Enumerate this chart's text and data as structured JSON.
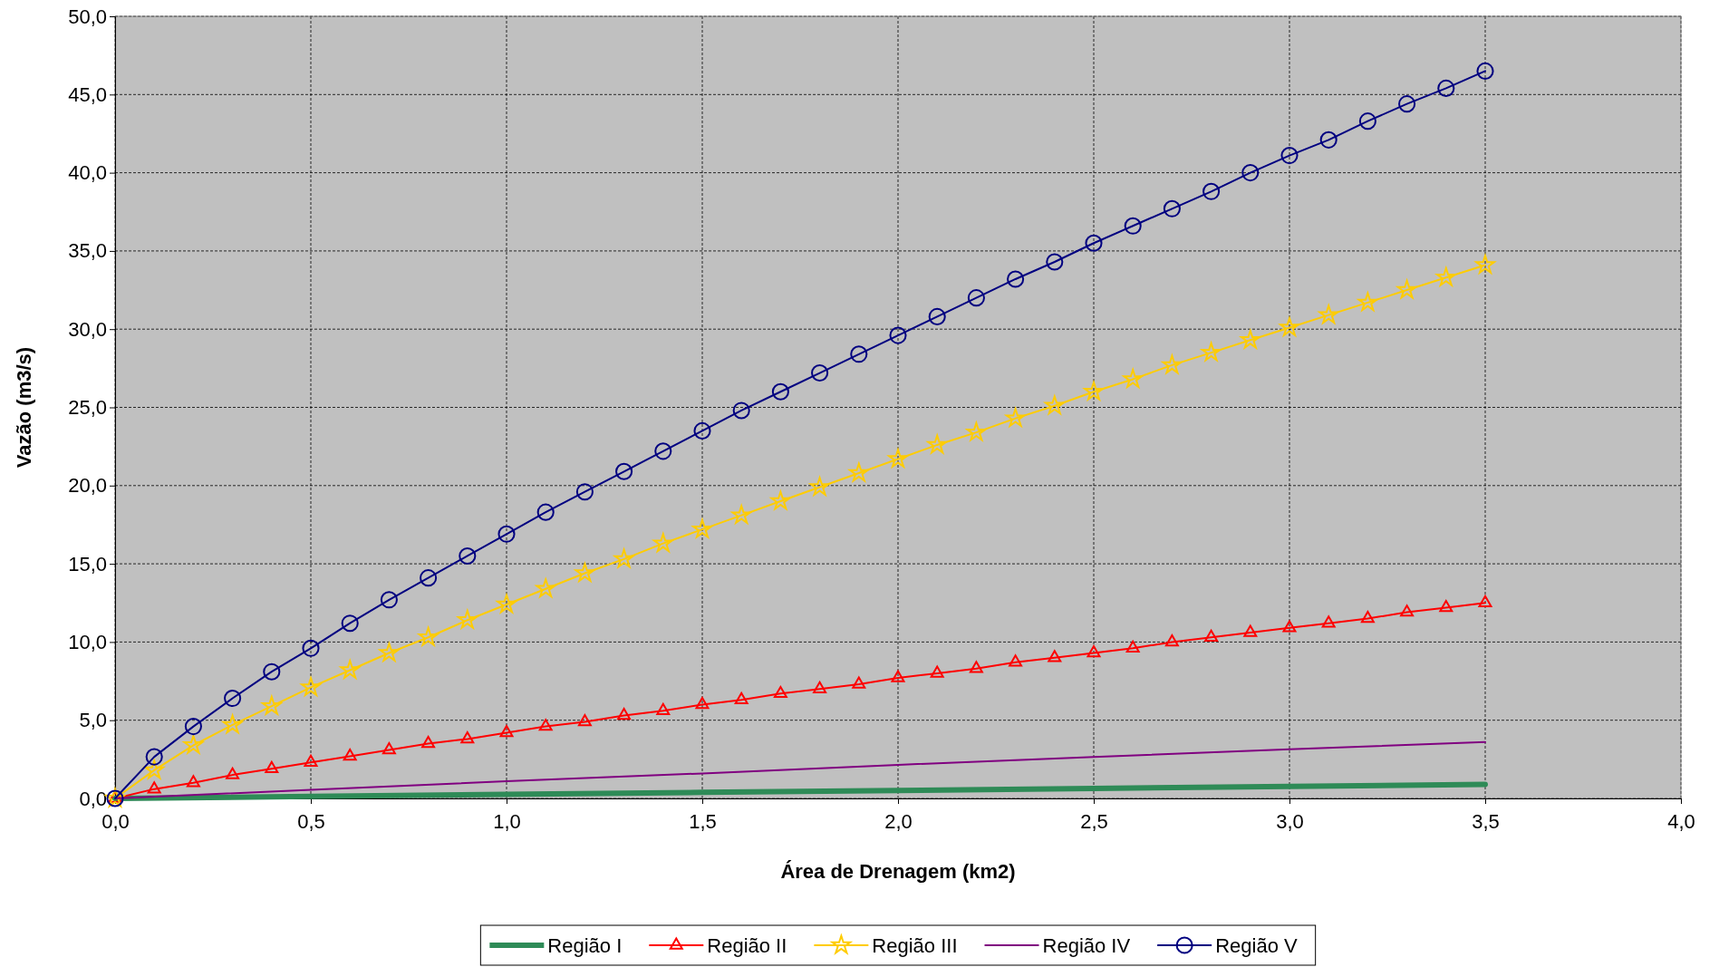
{
  "chart_data": {
    "type": "line",
    "xlabel": "Área de Drenagem (km2)",
    "ylabel": "Vazão (m3/s)",
    "xlim": [
      0,
      4
    ],
    "ylim": [
      0,
      50
    ],
    "xticks": [
      {
        "value": 0,
        "label": "0,0"
      },
      {
        "value": 0.5,
        "label": "0,5"
      },
      {
        "value": 1,
        "label": "1,0"
      },
      {
        "value": 1.5,
        "label": "1,5"
      },
      {
        "value": 2,
        "label": "2,0"
      },
      {
        "value": 2.5,
        "label": "2,5"
      },
      {
        "value": 3,
        "label": "3,0"
      },
      {
        "value": 3.5,
        "label": "3,5"
      },
      {
        "value": 4,
        "label": "4,0"
      }
    ],
    "yticks": [
      {
        "value": 0,
        "label": "0,0"
      },
      {
        "value": 5,
        "label": "5,0"
      },
      {
        "value": 10,
        "label": "10,0"
      },
      {
        "value": 15,
        "label": "15,0"
      },
      {
        "value": 20,
        "label": "20,0"
      },
      {
        "value": 25,
        "label": "25,0"
      },
      {
        "value": 30,
        "label": "30,0"
      },
      {
        "value": 35,
        "label": "35,0"
      },
      {
        "value": 40,
        "label": "40,0"
      },
      {
        "value": 45,
        "label": "45,0"
      },
      {
        "value": 50,
        "label": "50,0"
      }
    ],
    "grid": true,
    "legend": "bottom",
    "line_style": "solid",
    "x": [
      0,
      0.1,
      0.2,
      0.3,
      0.4,
      0.5,
      0.6,
      0.7,
      0.8,
      0.9,
      1.0,
      1.1,
      1.2,
      1.3,
      1.4,
      1.5,
      1.6,
      1.7,
      1.8,
      1.9,
      2.0,
      2.1,
      2.2,
      2.3,
      2.4,
      2.5,
      2.6,
      2.7,
      2.8,
      2.9,
      3.0,
      3.1,
      3.2,
      3.3,
      3.4,
      3.5
    ],
    "series": [
      {
        "name": "Região I",
        "color": "#2e8b57",
        "marker": "none",
        "x": [
          0,
          0.5,
          1.0,
          1.5,
          2.0,
          2.5,
          3.0,
          3.5
        ],
        "values": [
          0,
          0.13,
          0.26,
          0.39,
          0.51,
          0.64,
          0.77,
          0.9
        ]
      },
      {
        "name": "Região II",
        "color": "#ff0000",
        "marker": "triangle",
        "values": [
          0,
          0.6,
          1.0,
          1.5,
          1.9,
          2.3,
          2.7,
          3.1,
          3.5,
          3.8,
          4.2,
          4.6,
          4.9,
          5.3,
          5.6,
          6.0,
          6.3,
          6.7,
          7.0,
          7.3,
          7.7,
          8.0,
          8.3,
          8.7,
          9.0,
          9.3,
          9.6,
          10.0,
          10.3,
          10.6,
          10.9,
          11.2,
          11.5,
          11.9,
          12.2,
          12.5
        ]
      },
      {
        "name": "Região III",
        "color": "#ffcc00",
        "marker": "star",
        "values": [
          0,
          1.8,
          3.4,
          4.7,
          5.9,
          7.1,
          8.2,
          9.3,
          10.3,
          11.4,
          12.4,
          13.4,
          14.4,
          15.3,
          16.3,
          17.2,
          18.1,
          19.0,
          19.9,
          20.8,
          21.7,
          22.6,
          23.4,
          24.3,
          25.1,
          26.0,
          26.8,
          27.7,
          28.5,
          29.3,
          30.1,
          30.9,
          31.7,
          32.5,
          33.3,
          34.1
        ]
      },
      {
        "name": "Região IV",
        "color": "#800080",
        "marker": "none",
        "x": [
          0,
          0.5,
          1.0,
          1.5,
          2.0,
          2.5,
          3.0,
          3.5
        ],
        "values": [
          0,
          0.55,
          1.1,
          1.6,
          2.15,
          2.65,
          3.15,
          3.6
        ]
      },
      {
        "name": "Região V",
        "color": "#000080",
        "marker": "circle",
        "values": [
          0,
          2.66,
          4.6,
          6.4,
          8.1,
          9.6,
          11.2,
          12.7,
          14.1,
          15.5,
          16.9,
          18.3,
          19.6,
          20.9,
          22.2,
          23.5,
          24.8,
          26.0,
          27.2,
          28.4,
          29.6,
          30.8,
          32.0,
          33.2,
          34.3,
          35.5,
          36.6,
          37.7,
          38.8,
          40.0,
          41.1,
          42.1,
          43.3,
          44.4,
          45.4,
          46.5
        ]
      }
    ]
  }
}
